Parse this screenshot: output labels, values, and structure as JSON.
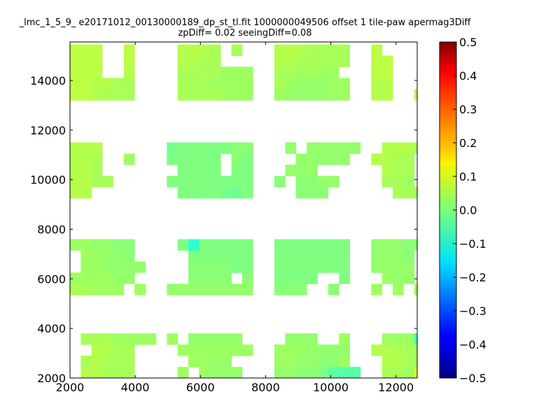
{
  "title_line1": "_lmc_1_5_9_ e20171012_00130000189_dp_st_tl.fit 1000000049506 offset 1 tile-paw apermag3Diff",
  "title_line2": "zpDiff= 0.02 seeingDiff=0.08",
  "chart_data": {
    "type": "heatmap",
    "title": "_lmc_1_5_9_ e20171012_00130000189_dp_st_tl.fit 1000000049506 offset 1 tile-paw apermag3Diff\nzpDiff= 0.02 seeingDiff=0.08",
    "xlabel": "",
    "ylabel": "",
    "xlim": [
      2000,
      12650
    ],
    "ylim": [
      2000,
      15550
    ],
    "x_ticks": [
      2000,
      4000,
      6000,
      8000,
      10000,
      12000
    ],
    "y_ticks": [
      2000,
      4000,
      6000,
      8000,
      10000,
      12000,
      14000
    ],
    "colorbar": {
      "range": [
        -0.5,
        0.5
      ],
      "ticks": [
        0.5,
        0.4,
        0.3,
        0.2,
        0.1,
        0.0,
        -0.1,
        -0.2,
        -0.3,
        -0.4,
        -0.5
      ],
      "tick_labels": [
        "0.5",
        "0.4",
        "0.3",
        "0.2",
        "0.1",
        "0.0",
        "−0.1",
        "−0.2",
        "−0.3",
        "−0.4",
        "−0.5"
      ],
      "colormap": "jet"
    },
    "cell_size": [
      330,
      450
    ],
    "rows": [
      {
        "y": 2000,
        "x0": 2000,
        "v": [
          0.05,
          0.05,
          0.04,
          0.04,
          0.04,
          0.04,
          null,
          null,
          null,
          0.03,
          0.03,
          0.03,
          0.03,
          0.02,
          0.02,
          0.02,
          0.02,
          null,
          null,
          0.02,
          0.02,
          0.01,
          0.01,
          0.0,
          -0.03,
          -0.04,
          -0.04,
          null,
          null,
          0.03,
          0.03,
          0.02,
          null
        ]
      },
      {
        "y": 2450,
        "x0": 2000,
        "v": [
          null,
          0.05,
          0.05,
          0.04,
          0.04,
          0.04,
          null,
          null,
          null,
          null,
          0.03,
          null,
          0.03,
          0.02,
          0.02,
          0.02,
          null,
          null,
          null,
          0.02,
          0.02,
          0.01,
          0.01,
          0.0,
          -0.03,
          -0.04,
          -0.04,
          null,
          null,
          0.04,
          0.04,
          0.03,
          0.09,
          null
        ]
      },
      {
        "y": 2900,
        "x0": 2000,
        "v": [
          null,
          0.04,
          0.05,
          0.04,
          0.04,
          0.04,
          null,
          null,
          null,
          null,
          null,
          0.03,
          0.03,
          0.02,
          0.02,
          null,
          null,
          null,
          null,
          0.03,
          0.03,
          0.02,
          0.02,
          0.01,
          0.01,
          0.03,
          null,
          null,
          null,
          0.05,
          0.05,
          0.04,
          0.04,
          null
        ]
      },
      {
        "y": 3350,
        "x0": 2000,
        "v": [
          null,
          null,
          0.05,
          0.05,
          0.04,
          0.04,
          null,
          null,
          null,
          null,
          0.03,
          0.03,
          0.03,
          0.03,
          0.03,
          0.03,
          0.03,
          null,
          null,
          0.03,
          0.03,
          0.03,
          0.02,
          0.02,
          0.02,
          0.02,
          null,
          null,
          0.05,
          0.05,
          0.04,
          0.04,
          0.03,
          null
        ]
      },
      {
        "y": 3800,
        "x0": 2000,
        "v": [
          null,
          0.04,
          0.04,
          0.04,
          0.03,
          0.03,
          0.03,
          0.03,
          null,
          0.03,
          null,
          0.02,
          0.02,
          0.02,
          0.02,
          0.02,
          null,
          null,
          null,
          null,
          0.02,
          0.02,
          0.02,
          null,
          null,
          0.03,
          null,
          null,
          null,
          0.03,
          0.03,
          0.03,
          -0.06,
          -0.04
        ]
      },
      {
        "y": 5800,
        "x0": 2000,
        "v": [
          0.04,
          0.04,
          0.03,
          0.03,
          0.03,
          null,
          0.03,
          null,
          null,
          0.02,
          0.02,
          0.02,
          0.02,
          0.02,
          0.02,
          0.02,
          0.02,
          null,
          null,
          0.01,
          0.01,
          0.01,
          null,
          null,
          0.01,
          null,
          null,
          null,
          0.03,
          null,
          0.03,
          null,
          0.04,
          0.04
        ]
      },
      {
        "y": 6250,
        "x0": 2000,
        "v": [
          0.03,
          0.03,
          0.03,
          0.03,
          0.02,
          0.02,
          null,
          null,
          null,
          null,
          null,
          0.01,
          0.01,
          0.01,
          0.01,
          null,
          0.01,
          null,
          null,
          0.0,
          0.0,
          0.0,
          0.0,
          null,
          null,
          0.0,
          null,
          null,
          null,
          0.03,
          0.02,
          0.02,
          null,
          null
        ]
      },
      {
        "y": 6700,
        "x0": 2000,
        "v": [
          null,
          0.03,
          0.03,
          0.02,
          0.02,
          0.02,
          0.02,
          null,
          null,
          null,
          null,
          0.01,
          0.01,
          0.01,
          0.01,
          0.0,
          0.0,
          null,
          null,
          0.0,
          0.0,
          0.0,
          0.0,
          0.0,
          0.0,
          0.0,
          null,
          null,
          0.02,
          0.02,
          0.02,
          0.02,
          null,
          null
        ]
      },
      {
        "y": 7150,
        "x0": 2000,
        "v": [
          null,
          0.03,
          0.03,
          0.02,
          0.02,
          0.01,
          null,
          null,
          null,
          null,
          null,
          0.0,
          0.0,
          0.0,
          0.0,
          0.0,
          0.0,
          null,
          null,
          0.0,
          0.0,
          0.0,
          0.0,
          0.0,
          0.0,
          0.0,
          null,
          null,
          0.02,
          0.02,
          0.02,
          0.01,
          null,
          null
        ]
      },
      {
        "y": 7600,
        "x0": 2000,
        "v": [
          0.03,
          0.03,
          0.02,
          0.02,
          0.01,
          0.01,
          null,
          null,
          null,
          null,
          0.0,
          -0.08,
          0.0,
          0.0,
          0.0,
          0.0,
          0.0,
          null,
          null,
          0.0,
          0.0,
          0.0,
          0.0,
          0.0,
          0.0,
          0.0,
          null,
          null,
          0.02,
          0.02,
          0.02,
          0.01,
          0.01,
          null
        ]
      },
      {
        "y": 9700,
        "x0": 2000,
        "v": [
          0.05,
          0.05,
          null,
          null,
          null,
          null,
          null,
          null,
          null,
          null,
          0.0,
          0.0,
          0.0,
          0.0,
          -0.01,
          -0.02,
          0.0,
          null,
          null,
          null,
          null,
          0.01,
          0.01,
          0.01,
          null,
          null,
          null,
          null,
          null,
          null,
          0.04,
          0.04,
          0.03,
          0.03
        ]
      },
      {
        "y": 10150,
        "x0": 2000,
        "v": [
          0.05,
          0.05,
          0.04,
          0.04,
          null,
          null,
          null,
          null,
          null,
          0.0,
          0.0,
          0.0,
          0.0,
          0.0,
          0.0,
          0.0,
          0.0,
          null,
          null,
          0.01,
          null,
          0.01,
          0.01,
          0.02,
          0.02,
          null,
          null,
          null,
          null,
          0.04,
          0.04,
          0.03,
          null,
          null
        ]
      },
      {
        "y": 10600,
        "x0": 2000,
        "v": [
          0.05,
          0.05,
          0.04,
          null,
          null,
          null,
          null,
          null,
          null,
          null,
          0.0,
          0.0,
          0.0,
          0.0,
          null,
          0.0,
          0.0,
          null,
          null,
          null,
          0.02,
          0.02,
          0.02,
          null,
          null,
          null,
          null,
          null,
          null,
          0.05,
          0.04,
          0.04,
          null,
          null
        ]
      },
      {
        "y": 11050,
        "x0": 2000,
        "v": [
          0.05,
          0.05,
          0.04,
          null,
          null,
          0.03,
          null,
          null,
          null,
          0.0,
          0.0,
          0.0,
          0.0,
          0.0,
          null,
          0.01,
          0.0,
          null,
          null,
          null,
          null,
          0.02,
          0.02,
          0.02,
          0.02,
          0.02,
          null,
          null,
          0.05,
          0.05,
          0.04,
          0.04,
          null,
          null
        ]
      },
      {
        "y": 11500,
        "x0": 2000,
        "v": [
          0.05,
          0.05,
          0.05,
          null,
          null,
          null,
          null,
          null,
          null,
          -0.01,
          0.0,
          0.0,
          0.0,
          0.0,
          0.0,
          0.01,
          0.01,
          null,
          null,
          null,
          0.02,
          null,
          0.02,
          0.02,
          0.02,
          0.02,
          0.02,
          null,
          null,
          0.05,
          0.05,
          0.05,
          0.04,
          null
        ]
      },
      {
        "y": 13650,
        "x0": 2000,
        "v": [
          0.06,
          0.06,
          0.05,
          0.04,
          0.04,
          0.04,
          null,
          null,
          null,
          null,
          0.04,
          0.04,
          0.04,
          0.04,
          0.03,
          0.03,
          0.03,
          null,
          null,
          0.03,
          0.02,
          0.02,
          0.02,
          0.02,
          0.03,
          0.03,
          null,
          null,
          0.05,
          0.05,
          null,
          null,
          0.06,
          0.06
        ]
      },
      {
        "y": 14100,
        "x0": 2000,
        "v": [
          0.06,
          0.06,
          0.05,
          0.05,
          0.04,
          0.04,
          null,
          null,
          null,
          null,
          0.04,
          0.04,
          0.04,
          0.03,
          0.03,
          0.03,
          0.03,
          null,
          null,
          0.04,
          0.03,
          0.02,
          0.02,
          0.02,
          0.03,
          0.03,
          null,
          null,
          0.05,
          0.05,
          null,
          null,
          null,
          null
        ]
      },
      {
        "y": 14550,
        "x0": 2000,
        "v": [
          0.06,
          0.06,
          0.06,
          null,
          null,
          0.05,
          null,
          null,
          null,
          null,
          0.04,
          0.04,
          0.04,
          0.04,
          0.03,
          0.03,
          0.03,
          null,
          null,
          0.04,
          0.04,
          0.03,
          0.04,
          0.03,
          0.03,
          null,
          null,
          null,
          0.06,
          0.06,
          null,
          null,
          null,
          null
        ]
      },
      {
        "y": 15000,
        "x0": 2000,
        "v": [
          0.06,
          0.06,
          0.06,
          null,
          null,
          0.06,
          null,
          null,
          null,
          null,
          0.05,
          0.05,
          0.04,
          0.04,
          null,
          null,
          null,
          null,
          null,
          0.05,
          0.05,
          0.04,
          0.04,
          0.04,
          0.04,
          0.04,
          null,
          null,
          0.06,
          0.06,
          null,
          null,
          null,
          null
        ]
      },
      {
        "y": 15450,
        "x0": 2000,
        "v": [
          0.06,
          0.06,
          0.06,
          null,
          null,
          0.06,
          null,
          null,
          null,
          null,
          0.05,
          0.05,
          0.05,
          0.04,
          null,
          0.04,
          null,
          null,
          null,
          0.05,
          0.05,
          0.05,
          0.04,
          0.04,
          0.04,
          0.04,
          null,
          null,
          0.06,
          null,
          null,
          null,
          null,
          null
        ]
      }
    ]
  }
}
